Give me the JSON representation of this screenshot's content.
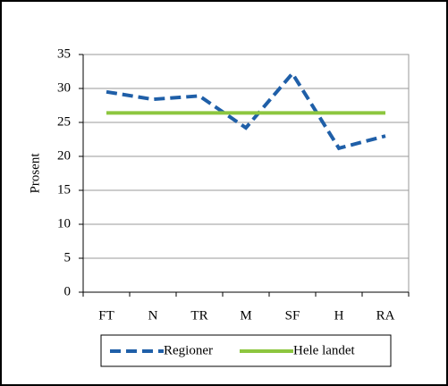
{
  "chart_data": {
    "type": "line",
    "y_label": "Prosent",
    "categories": [
      "FT",
      "N",
      "TR",
      "M",
      "SF",
      "H",
      "RA"
    ],
    "series": [
      {
        "name": "Regioner",
        "color": "#1f5fa8",
        "dashed": true,
        "values": [
          29.5,
          28.4,
          28.9,
          24.2,
          32.2,
          21.2,
          23.0
        ]
      },
      {
        "name": "Hele landet",
        "color": "#8dc63f",
        "dashed": false,
        "values": [
          26.4,
          26.4,
          26.4,
          26.4,
          26.4,
          26.4,
          26.4
        ]
      }
    ],
    "ylim": [
      0,
      35
    ],
    "yticks": [
      0,
      5,
      10,
      15,
      20,
      25,
      30,
      35
    ],
    "grid": true,
    "legend": "bottom"
  }
}
